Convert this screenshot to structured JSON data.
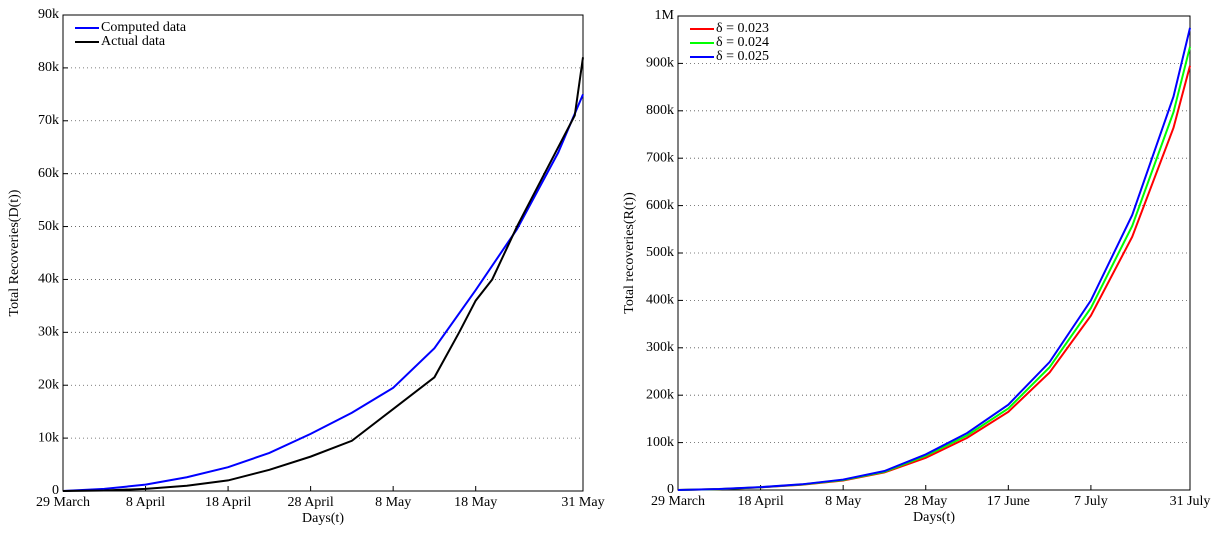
{
  "chart_data": [
    {
      "type": "line",
      "xlabel": "Days(t)",
      "ylabel": "Total Recoveries(D(t))",
      "legend": "upper left",
      "grid": true,
      "xlim": [
        0,
        63
      ],
      "ylim": [
        0,
        90000
      ],
      "xticks": [
        {
          "value": 0,
          "label": "29 March"
        },
        {
          "value": 10,
          "label": "8 April"
        },
        {
          "value": 20,
          "label": "18 April"
        },
        {
          "value": 30,
          "label": "28 April"
        },
        {
          "value": 40,
          "label": "8 May"
        },
        {
          "value": 50,
          "label": "18 May"
        },
        {
          "value": 63,
          "label": "31 May"
        }
      ],
      "yticks": [
        0,
        {
          "value": 10000,
          "label": "10k"
        },
        {
          "value": 20000,
          "label": "20k"
        },
        {
          "value": 30000,
          "label": "30k"
        },
        {
          "value": 40000,
          "label": "40k"
        },
        {
          "value": 50000,
          "label": "50k"
        },
        {
          "value": 60000,
          "label": "60k"
        },
        {
          "value": 70000,
          "label": "70k"
        },
        {
          "value": 80000,
          "label": "80k"
        },
        {
          "value": 90000,
          "label": "90k"
        }
      ],
      "series": [
        {
          "name": "Computed data",
          "color": "#0000ff",
          "x": [
            0,
            5,
            10,
            15,
            20,
            25,
            30,
            35,
            40,
            45,
            50,
            55,
            60,
            63
          ],
          "values": [
            0,
            400,
            1200,
            2600,
            4500,
            7200,
            10800,
            14800,
            19500,
            27000,
            38000,
            49500,
            64000,
            75000
          ]
        },
        {
          "name": "Actual data",
          "color": "#000000",
          "x": [
            0,
            5,
            10,
            15,
            20,
            25,
            30,
            35,
            40,
            45,
            48,
            50,
            52,
            55,
            58,
            60,
            62,
            63
          ],
          "values": [
            0,
            100,
            400,
            1000,
            2000,
            4000,
            6500,
            9500,
            15500,
            21500,
            30000,
            36000,
            40000,
            50000,
            59000,
            65000,
            71000,
            82000
          ]
        }
      ]
    },
    {
      "type": "line",
      "xlabel": "Days(t)",
      "ylabel": "Total recoveries(R(t))",
      "legend": "upper left",
      "grid": true,
      "xlim": [
        0,
        124
      ],
      "ylim": [
        0,
        1000000
      ],
      "xticks": [
        {
          "value": 0,
          "label": "29 March"
        },
        {
          "value": 20,
          "label": "18 April"
        },
        {
          "value": 40,
          "label": "8 May"
        },
        {
          "value": 60,
          "label": "28 May"
        },
        {
          "value": 80,
          "label": "17 June"
        },
        {
          "value": 100,
          "label": "7 July"
        },
        {
          "value": 124,
          "label": "31 July"
        }
      ],
      "yticks": [
        0,
        {
          "value": 100000,
          "label": "100k"
        },
        {
          "value": 200000,
          "label": "200k"
        },
        {
          "value": 300000,
          "label": "300k"
        },
        {
          "value": 400000,
          "label": "400k"
        },
        {
          "value": 500000,
          "label": "500k"
        },
        {
          "value": 600000,
          "label": "600k"
        },
        {
          "value": 700000,
          "label": "700k"
        },
        {
          "value": 800000,
          "label": "800k"
        },
        {
          "value": 900000,
          "label": "900k"
        },
        {
          "value": 1000000,
          "label": "1M"
        }
      ],
      "series": [
        {
          "name": "δ = 0.023",
          "color": "#ff0000",
          "x": [
            0,
            10,
            20,
            30,
            40,
            50,
            60,
            70,
            80,
            90,
            100,
            110,
            120,
            124
          ],
          "values": [
            0,
            1800,
            5500,
            11000,
            20000,
            37000,
            68000,
            110000,
            165000,
            248000,
            368000,
            534000,
            764000,
            895000
          ]
        },
        {
          "name": "δ = 0.024",
          "color": "#00ff00",
          "x": [
            0,
            10,
            20,
            30,
            40,
            50,
            60,
            70,
            80,
            90,
            100,
            110,
            120,
            124
          ],
          "values": [
            0,
            1900,
            5800,
            11500,
            21000,
            38500,
            72000,
            115000,
            172000,
            259000,
            384000,
            557000,
            797000,
            935000
          ]
        },
        {
          "name": "δ = 0.025",
          "color": "#0000ff",
          "x": [
            0,
            10,
            20,
            30,
            40,
            50,
            60,
            70,
            80,
            90,
            100,
            110,
            120,
            124
          ],
          "values": [
            0,
            2000,
            6000,
            12000,
            22000,
            40000,
            75000,
            120000,
            180000,
            270000,
            400000,
            580000,
            830000,
            975000
          ]
        }
      ]
    }
  ]
}
